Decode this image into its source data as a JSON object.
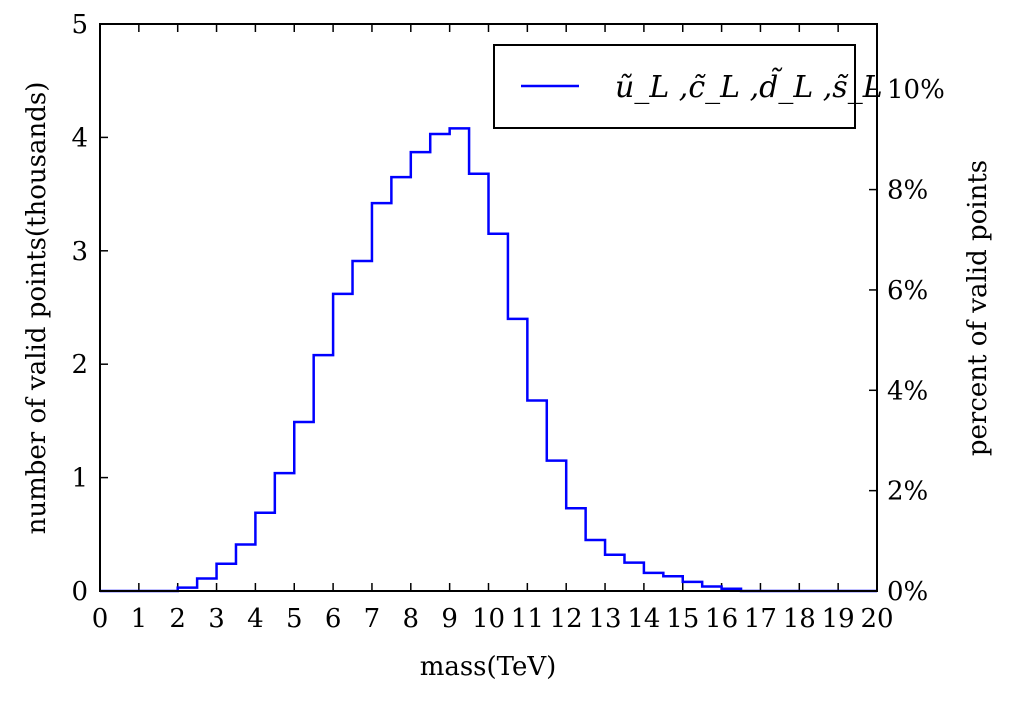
{
  "chart_data": {
    "type": "line",
    "style": "step histogram",
    "xlabel": "mass(TeV)",
    "ylabel": "number of valid points(thousands)",
    "ylabel_right": "percent of valid points",
    "xlim": [
      0,
      20
    ],
    "ylim": [
      0,
      5
    ],
    "right_ylim_percent": [
      0,
      11.3
    ],
    "x_ticks": [
      "0",
      "1",
      "2",
      "3",
      "4",
      "5",
      "6",
      "7",
      "8",
      "9",
      "10",
      "11",
      "12",
      "13",
      "14",
      "15",
      "16",
      "17",
      "18",
      "19",
      "20"
    ],
    "y_ticks": [
      "0",
      "1",
      "2",
      "3",
      "4",
      "5"
    ],
    "right_ticks": [
      "0%",
      "2%",
      "4%",
      "6%",
      "8%",
      "10%"
    ],
    "grid": false,
    "legend_position": "top-right",
    "series": [
      {
        "name": "ũ_L ,c̃_L ,d̃_L ,s̃_L",
        "color": "#0000ff",
        "bin_edges": [
          2,
          2.5,
          3,
          3.5,
          4,
          4.5,
          5,
          5.5,
          6,
          6.5,
          7,
          7.5,
          8,
          8.5,
          9,
          9.5,
          10,
          10.5,
          11,
          11.5,
          12,
          12.5,
          13,
          13.5,
          14,
          14.5,
          15,
          15.5,
          16,
          16.5
        ],
        "values": [
          0.03,
          0.11,
          0.24,
          0.41,
          0.69,
          1.04,
          1.49,
          2.08,
          2.62,
          2.91,
          3.42,
          3.65,
          3.87,
          4.03,
          4.08,
          3.68,
          3.15,
          2.4,
          1.68,
          1.15,
          0.73,
          0.45,
          0.32,
          0.25,
          0.16,
          0.13,
          0.08,
          0.04,
          0.02
        ]
      }
    ]
  }
}
